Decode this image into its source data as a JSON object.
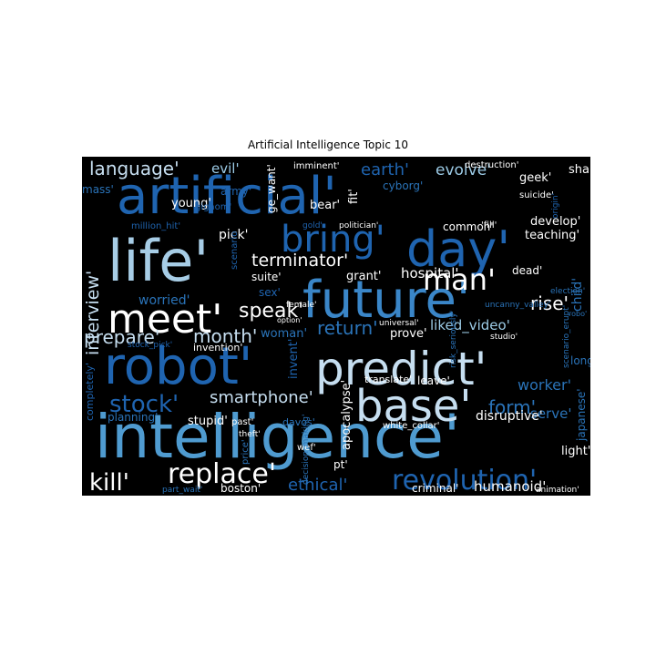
{
  "chart_data": {
    "type": "wordcloud",
    "title": "Artificial Intelligence Topic 10",
    "background": "#000000",
    "colormap": [
      "#0b4f9e",
      "#2a73b8",
      "#4f9bd0",
      "#9ccbe6",
      "#ffffff"
    ],
    "words": [
      {
        "text": "artificial'",
        "color": "#1f64b0"
      },
      {
        "text": "intelligence'",
        "color": "#4f9bd0"
      },
      {
        "text": "robot'",
        "color": "#1f64b0"
      },
      {
        "text": "predict'",
        "color": "#c6def0"
      },
      {
        "text": "future'",
        "color": "#3a86c8"
      },
      {
        "text": "life'",
        "color": "#a7cde6"
      },
      {
        "text": "day'",
        "color": "#1f64b0"
      },
      {
        "text": "meet'",
        "color": "#ffffff"
      },
      {
        "text": "base'",
        "color": "#c6def0"
      },
      {
        "text": "bring'",
        "color": "#1f64b0"
      },
      {
        "text": "revolution'",
        "color": "#1f64b0"
      },
      {
        "text": "replace'",
        "color": "#ffffff"
      },
      {
        "text": "man'",
        "color": "#ffffff"
      },
      {
        "text": "stock'",
        "color": "#1f64b0"
      },
      {
        "text": "kill'",
        "color": "#ffffff"
      },
      {
        "text": "language'",
        "color": "#c6def0"
      },
      {
        "text": "interview'",
        "color": "#c6def0"
      },
      {
        "text": "prepare'",
        "color": "#c6def0"
      },
      {
        "text": "month'",
        "color": "#c6def0"
      },
      {
        "text": "speak'",
        "color": "#ffffff"
      },
      {
        "text": "terminator'",
        "color": "#ffffff"
      },
      {
        "text": "smartphone'",
        "color": "#c6def0"
      },
      {
        "text": "return'",
        "color": "#2a73b8"
      },
      {
        "text": "form'",
        "color": "#2a73b8"
      },
      {
        "text": "rise'",
        "color": "#ffffff"
      },
      {
        "text": "ethical'",
        "color": "#1f64b0"
      },
      {
        "text": "earth'",
        "color": "#1f64b0"
      },
      {
        "text": "evolve'",
        "color": "#9ccbe6"
      },
      {
        "text": "hospital'",
        "color": "#ffffff"
      },
      {
        "text": "liked_video'",
        "color": "#9ccbe6"
      },
      {
        "text": "worker'",
        "color": "#2a73b8"
      },
      {
        "text": "humanoid'",
        "color": "#ffffff"
      },
      {
        "text": "evil'",
        "color": "#9ccbe6"
      },
      {
        "text": "mass'",
        "color": "#2a73b8"
      },
      {
        "text": "young'",
        "color": "#ffffff"
      },
      {
        "text": "army'",
        "color": "#1f64b0"
      },
      {
        "text": "bear'",
        "color": "#ffffff"
      },
      {
        "text": "fit'",
        "color": "#ffffff"
      },
      {
        "text": "cyborg'",
        "color": "#2a73b8"
      },
      {
        "text": "geek'",
        "color": "#ffffff"
      },
      {
        "text": "shake'",
        "color": "#ffffff"
      },
      {
        "text": "develop'",
        "color": "#ffffff"
      },
      {
        "text": "teaching'",
        "color": "#ffffff"
      },
      {
        "text": "serve'",
        "color": "#2a73b8"
      },
      {
        "text": "child'",
        "color": "#2a73b8"
      },
      {
        "text": "pick'",
        "color": "#ffffff"
      },
      {
        "text": "suite'",
        "color": "#ffffff"
      },
      {
        "text": "grant'",
        "color": "#ffffff"
      },
      {
        "text": "worried'",
        "color": "#2a73b8"
      },
      {
        "text": "sex'",
        "color": "#1f64b0"
      },
      {
        "text": "woman'",
        "color": "#2a73b8"
      },
      {
        "text": "prove'",
        "color": "#ffffff"
      },
      {
        "text": "invention'",
        "color": "#ffffff"
      },
      {
        "text": "invent'",
        "color": "#1f64b0"
      },
      {
        "text": "apocalypse'",
        "color": "#ffffff"
      },
      {
        "text": "translate'",
        "color": "#ffffff"
      },
      {
        "text": "leave'",
        "color": "#ffffff"
      },
      {
        "text": "disruptive'",
        "color": "#ffffff"
      },
      {
        "text": "planning'",
        "color": "#2a73b8"
      },
      {
        "text": "stupid'",
        "color": "#ffffff"
      },
      {
        "text": "light'",
        "color": "#ffffff"
      },
      {
        "text": "japanese'",
        "color": "#2a73b8"
      },
      {
        "text": "long'",
        "color": "#2a73b8"
      },
      {
        "text": "criminal'",
        "color": "#ffffff"
      },
      {
        "text": "boston'",
        "color": "#ffffff"
      },
      {
        "text": "pt'",
        "color": "#ffffff"
      },
      {
        "text": "common'",
        "color": "#ffffff"
      },
      {
        "text": "dead'",
        "color": "#ffffff"
      },
      {
        "text": "completely'",
        "color": "#1f64b0"
      },
      {
        "text": "ge_want'",
        "color": "#ffffff"
      },
      {
        "text": "million_hit'",
        "color": "#1f64b0"
      },
      {
        "text": "gigaom'",
        "color": "#1f64b0"
      },
      {
        "text": "imminent'",
        "color": "#ffffff"
      },
      {
        "text": "destruction'",
        "color": "#ffffff"
      },
      {
        "text": "suicide'",
        "color": "#ffffff"
      },
      {
        "text": "origin'",
        "color": "#1f64b0"
      },
      {
        "text": "politician'",
        "color": "#ffffff"
      },
      {
        "text": "gold'",
        "color": "#1f64b0"
      },
      {
        "text": "'fill'",
        "color": "#ffffff"
      },
      {
        "text": "uncanny_valley'",
        "color": "#2a73b8"
      },
      {
        "text": "election'",
        "color": "#2a73b8"
      },
      {
        "text": "scenario_erupt'",
        "color": "#2a73b8"
      },
      {
        "text": "robo'",
        "color": "#2a73b8"
      },
      {
        "text": "female'",
        "color": "#ffffff"
      },
      {
        "text": "option'",
        "color": "#ffffff"
      },
      {
        "text": "universal'",
        "color": "#ffffff"
      },
      {
        "text": "studio'",
        "color": "#ffffff"
      },
      {
        "text": "risk_seriously'",
        "color": "#2a73b8"
      },
      {
        "text": "stock_pick'",
        "color": "#1f64b0"
      },
      {
        "text": "theft'",
        "color": "#ffffff"
      },
      {
        "text": "past'",
        "color": "#ffffff"
      },
      {
        "text": "davos'",
        "color": "#2a73b8"
      },
      {
        "text": "price'",
        "color": "#2a73b8"
      },
      {
        "text": "wef'",
        "color": "#ffffff"
      },
      {
        "text": "decision_making'",
        "color": "#2a73b8"
      },
      {
        "text": "white_collar'",
        "color": "#ffffff"
      },
      {
        "text": "part_wait'",
        "color": "#2a73b8"
      },
      {
        "text": "animation'",
        "color": "#ffffff"
      },
      {
        "text": "scenario",
        "color": "#1f64b0"
      }
    ]
  }
}
